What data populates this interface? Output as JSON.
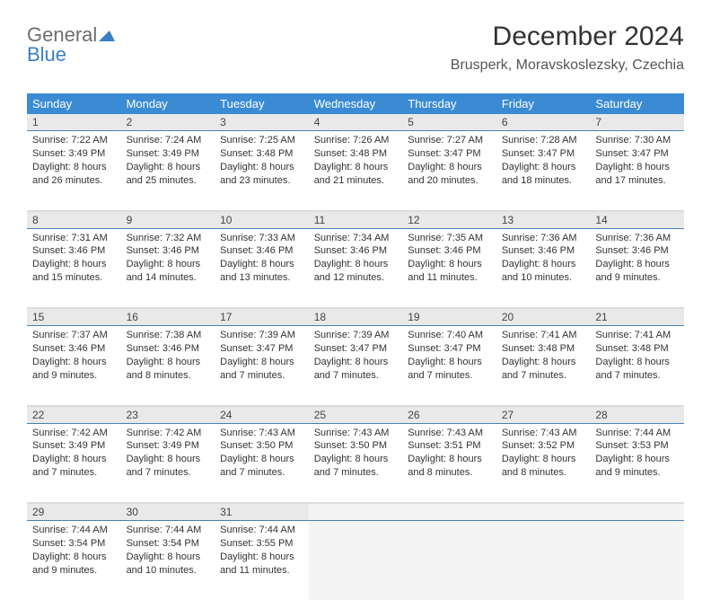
{
  "logo": {
    "part1": "General",
    "part2": "Blue",
    "tri_color": "#3b7fc4"
  },
  "header": {
    "title": "December 2024",
    "subtitle": "Brusperk, Moravskoslezsky, Czechia",
    "title_color": "#333333",
    "subtitle_color": "#555555",
    "title_fontsize": 30,
    "subtitle_fontsize": 16
  },
  "style": {
    "header_bg": "#3b8bd4",
    "header_fg": "#ffffff",
    "daynum_bg": "#e9e9e9",
    "daynum_border": "#4a7fb5",
    "cell_bg": "#ffffff",
    "empty_bg": "#f4f4f4",
    "sep_color": "#dcdcdc",
    "body_font": 11,
    "header_font": 13,
    "daynum_font": 12
  },
  "dow": [
    "Sunday",
    "Monday",
    "Tuesday",
    "Wednesday",
    "Thursday",
    "Friday",
    "Saturday"
  ],
  "weeks": [
    {
      "nums": [
        "1",
        "2",
        "3",
        "4",
        "5",
        "6",
        "7"
      ],
      "cells": [
        {
          "sr": "Sunrise: 7:22 AM",
          "ss": "Sunset: 3:49 PM",
          "d1": "Daylight: 8 hours",
          "d2": "and 26 minutes."
        },
        {
          "sr": "Sunrise: 7:24 AM",
          "ss": "Sunset: 3:49 PM",
          "d1": "Daylight: 8 hours",
          "d2": "and 25 minutes."
        },
        {
          "sr": "Sunrise: 7:25 AM",
          "ss": "Sunset: 3:48 PM",
          "d1": "Daylight: 8 hours",
          "d2": "and 23 minutes."
        },
        {
          "sr": "Sunrise: 7:26 AM",
          "ss": "Sunset: 3:48 PM",
          "d1": "Daylight: 8 hours",
          "d2": "and 21 minutes."
        },
        {
          "sr": "Sunrise: 7:27 AM",
          "ss": "Sunset: 3:47 PM",
          "d1": "Daylight: 8 hours",
          "d2": "and 20 minutes."
        },
        {
          "sr": "Sunrise: 7:28 AM",
          "ss": "Sunset: 3:47 PM",
          "d1": "Daylight: 8 hours",
          "d2": "and 18 minutes."
        },
        {
          "sr": "Sunrise: 7:30 AM",
          "ss": "Sunset: 3:47 PM",
          "d1": "Daylight: 8 hours",
          "d2": "and 17 minutes."
        }
      ]
    },
    {
      "nums": [
        "8",
        "9",
        "10",
        "11",
        "12",
        "13",
        "14"
      ],
      "cells": [
        {
          "sr": "Sunrise: 7:31 AM",
          "ss": "Sunset: 3:46 PM",
          "d1": "Daylight: 8 hours",
          "d2": "and 15 minutes."
        },
        {
          "sr": "Sunrise: 7:32 AM",
          "ss": "Sunset: 3:46 PM",
          "d1": "Daylight: 8 hours",
          "d2": "and 14 minutes."
        },
        {
          "sr": "Sunrise: 7:33 AM",
          "ss": "Sunset: 3:46 PM",
          "d1": "Daylight: 8 hours",
          "d2": "and 13 minutes."
        },
        {
          "sr": "Sunrise: 7:34 AM",
          "ss": "Sunset: 3:46 PM",
          "d1": "Daylight: 8 hours",
          "d2": "and 12 minutes."
        },
        {
          "sr": "Sunrise: 7:35 AM",
          "ss": "Sunset: 3:46 PM",
          "d1": "Daylight: 8 hours",
          "d2": "and 11 minutes."
        },
        {
          "sr": "Sunrise: 7:36 AM",
          "ss": "Sunset: 3:46 PM",
          "d1": "Daylight: 8 hours",
          "d2": "and 10 minutes."
        },
        {
          "sr": "Sunrise: 7:36 AM",
          "ss": "Sunset: 3:46 PM",
          "d1": "Daylight: 8 hours",
          "d2": "and 9 minutes."
        }
      ]
    },
    {
      "nums": [
        "15",
        "16",
        "17",
        "18",
        "19",
        "20",
        "21"
      ],
      "cells": [
        {
          "sr": "Sunrise: 7:37 AM",
          "ss": "Sunset: 3:46 PM",
          "d1": "Daylight: 8 hours",
          "d2": "and 9 minutes."
        },
        {
          "sr": "Sunrise: 7:38 AM",
          "ss": "Sunset: 3:46 PM",
          "d1": "Daylight: 8 hours",
          "d2": "and 8 minutes."
        },
        {
          "sr": "Sunrise: 7:39 AM",
          "ss": "Sunset: 3:47 PM",
          "d1": "Daylight: 8 hours",
          "d2": "and 7 minutes."
        },
        {
          "sr": "Sunrise: 7:39 AM",
          "ss": "Sunset: 3:47 PM",
          "d1": "Daylight: 8 hours",
          "d2": "and 7 minutes."
        },
        {
          "sr": "Sunrise: 7:40 AM",
          "ss": "Sunset: 3:47 PM",
          "d1": "Daylight: 8 hours",
          "d2": "and 7 minutes."
        },
        {
          "sr": "Sunrise: 7:41 AM",
          "ss": "Sunset: 3:48 PM",
          "d1": "Daylight: 8 hours",
          "d2": "and 7 minutes."
        },
        {
          "sr": "Sunrise: 7:41 AM",
          "ss": "Sunset: 3:48 PM",
          "d1": "Daylight: 8 hours",
          "d2": "and 7 minutes."
        }
      ]
    },
    {
      "nums": [
        "22",
        "23",
        "24",
        "25",
        "26",
        "27",
        "28"
      ],
      "cells": [
        {
          "sr": "Sunrise: 7:42 AM",
          "ss": "Sunset: 3:49 PM",
          "d1": "Daylight: 8 hours",
          "d2": "and 7 minutes."
        },
        {
          "sr": "Sunrise: 7:42 AM",
          "ss": "Sunset: 3:49 PM",
          "d1": "Daylight: 8 hours",
          "d2": "and 7 minutes."
        },
        {
          "sr": "Sunrise: 7:43 AM",
          "ss": "Sunset: 3:50 PM",
          "d1": "Daylight: 8 hours",
          "d2": "and 7 minutes."
        },
        {
          "sr": "Sunrise: 7:43 AM",
          "ss": "Sunset: 3:50 PM",
          "d1": "Daylight: 8 hours",
          "d2": "and 7 minutes."
        },
        {
          "sr": "Sunrise: 7:43 AM",
          "ss": "Sunset: 3:51 PM",
          "d1": "Daylight: 8 hours",
          "d2": "and 8 minutes."
        },
        {
          "sr": "Sunrise: 7:43 AM",
          "ss": "Sunset: 3:52 PM",
          "d1": "Daylight: 8 hours",
          "d2": "and 8 minutes."
        },
        {
          "sr": "Sunrise: 7:44 AM",
          "ss": "Sunset: 3:53 PM",
          "d1": "Daylight: 8 hours",
          "d2": "and 9 minutes."
        }
      ]
    },
    {
      "nums": [
        "29",
        "30",
        "31",
        "",
        "",
        "",
        ""
      ],
      "cells": [
        {
          "sr": "Sunrise: 7:44 AM",
          "ss": "Sunset: 3:54 PM",
          "d1": "Daylight: 8 hours",
          "d2": "and 9 minutes."
        },
        {
          "sr": "Sunrise: 7:44 AM",
          "ss": "Sunset: 3:54 PM",
          "d1": "Daylight: 8 hours",
          "d2": "and 10 minutes."
        },
        {
          "sr": "Sunrise: 7:44 AM",
          "ss": "Sunset: 3:55 PM",
          "d1": "Daylight: 8 hours",
          "d2": "and 11 minutes."
        },
        null,
        null,
        null,
        null
      ]
    }
  ]
}
